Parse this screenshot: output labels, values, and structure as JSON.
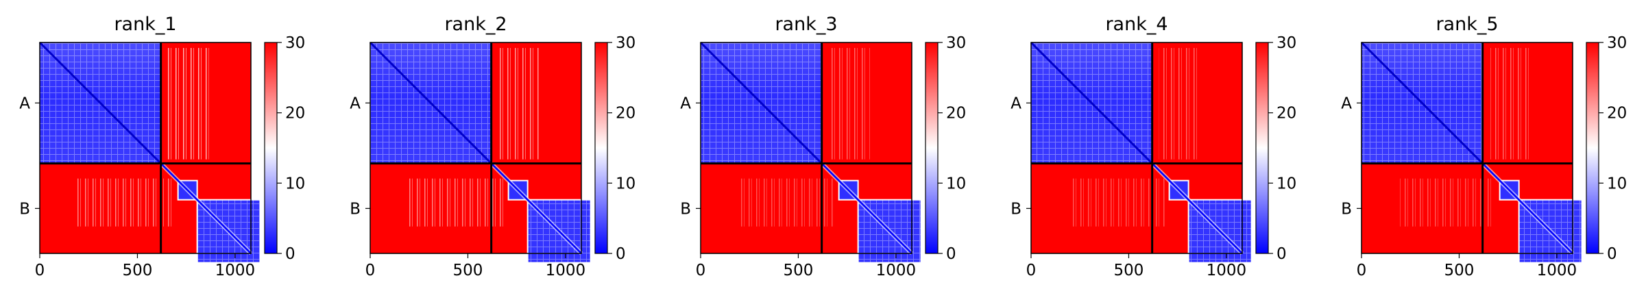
{
  "chart_data": [
    {
      "type": "heatmap",
      "title": "rank_1",
      "chains": [
        "A",
        "B"
      ],
      "chain_boundary": 620,
      "xlim": [
        0,
        1081
      ],
      "xticks": [
        0,
        500,
        1000
      ],
      "colorbar": {
        "min": 0,
        "max": 30,
        "ticks": [
          0,
          10,
          20,
          30
        ],
        "colors": [
          "#0000ff",
          "#ffffff",
          "#ff0000"
        ]
      },
      "xlabel": "",
      "ylabel": ""
    },
    {
      "type": "heatmap",
      "title": "rank_2",
      "chains": [
        "A",
        "B"
      ],
      "chain_boundary": 620,
      "xlim": [
        0,
        1081
      ],
      "xticks": [
        0,
        500,
        1000
      ],
      "colorbar": {
        "min": 0,
        "max": 30,
        "ticks": [
          0,
          10,
          20,
          30
        ],
        "colors": [
          "#0000ff",
          "#ffffff",
          "#ff0000"
        ]
      },
      "xlabel": "",
      "ylabel": ""
    },
    {
      "type": "heatmap",
      "title": "rank_3",
      "chains": [
        "A",
        "B"
      ],
      "chain_boundary": 620,
      "xlim": [
        0,
        1081
      ],
      "xticks": [
        0,
        500,
        1000
      ],
      "colorbar": {
        "min": 0,
        "max": 30,
        "ticks": [
          0,
          10,
          20,
          30
        ],
        "colors": [
          "#0000ff",
          "#ffffff",
          "#ff0000"
        ]
      },
      "xlabel": "",
      "ylabel": ""
    },
    {
      "type": "heatmap",
      "title": "rank_4",
      "chains": [
        "A",
        "B"
      ],
      "chain_boundary": 620,
      "xlim": [
        0,
        1081
      ],
      "xticks": [
        0,
        500,
        1000
      ],
      "colorbar": {
        "min": 0,
        "max": 30,
        "ticks": [
          0,
          10,
          20,
          30
        ],
        "colors": [
          "#0000ff",
          "#ffffff",
          "#ff0000"
        ]
      },
      "xlabel": "",
      "ylabel": ""
    },
    {
      "type": "heatmap",
      "title": "rank_5",
      "chains": [
        "A",
        "B"
      ],
      "chain_boundary": 620,
      "xlim": [
        0,
        1081
      ],
      "xticks": [
        0,
        500,
        1000
      ],
      "colorbar": {
        "min": 0,
        "max": 30,
        "ticks": [
          0,
          10,
          20,
          30
        ],
        "colors": [
          "#0000ff",
          "#ffffff",
          "#ff0000"
        ]
      },
      "xlabel": "",
      "ylabel": ""
    }
  ]
}
